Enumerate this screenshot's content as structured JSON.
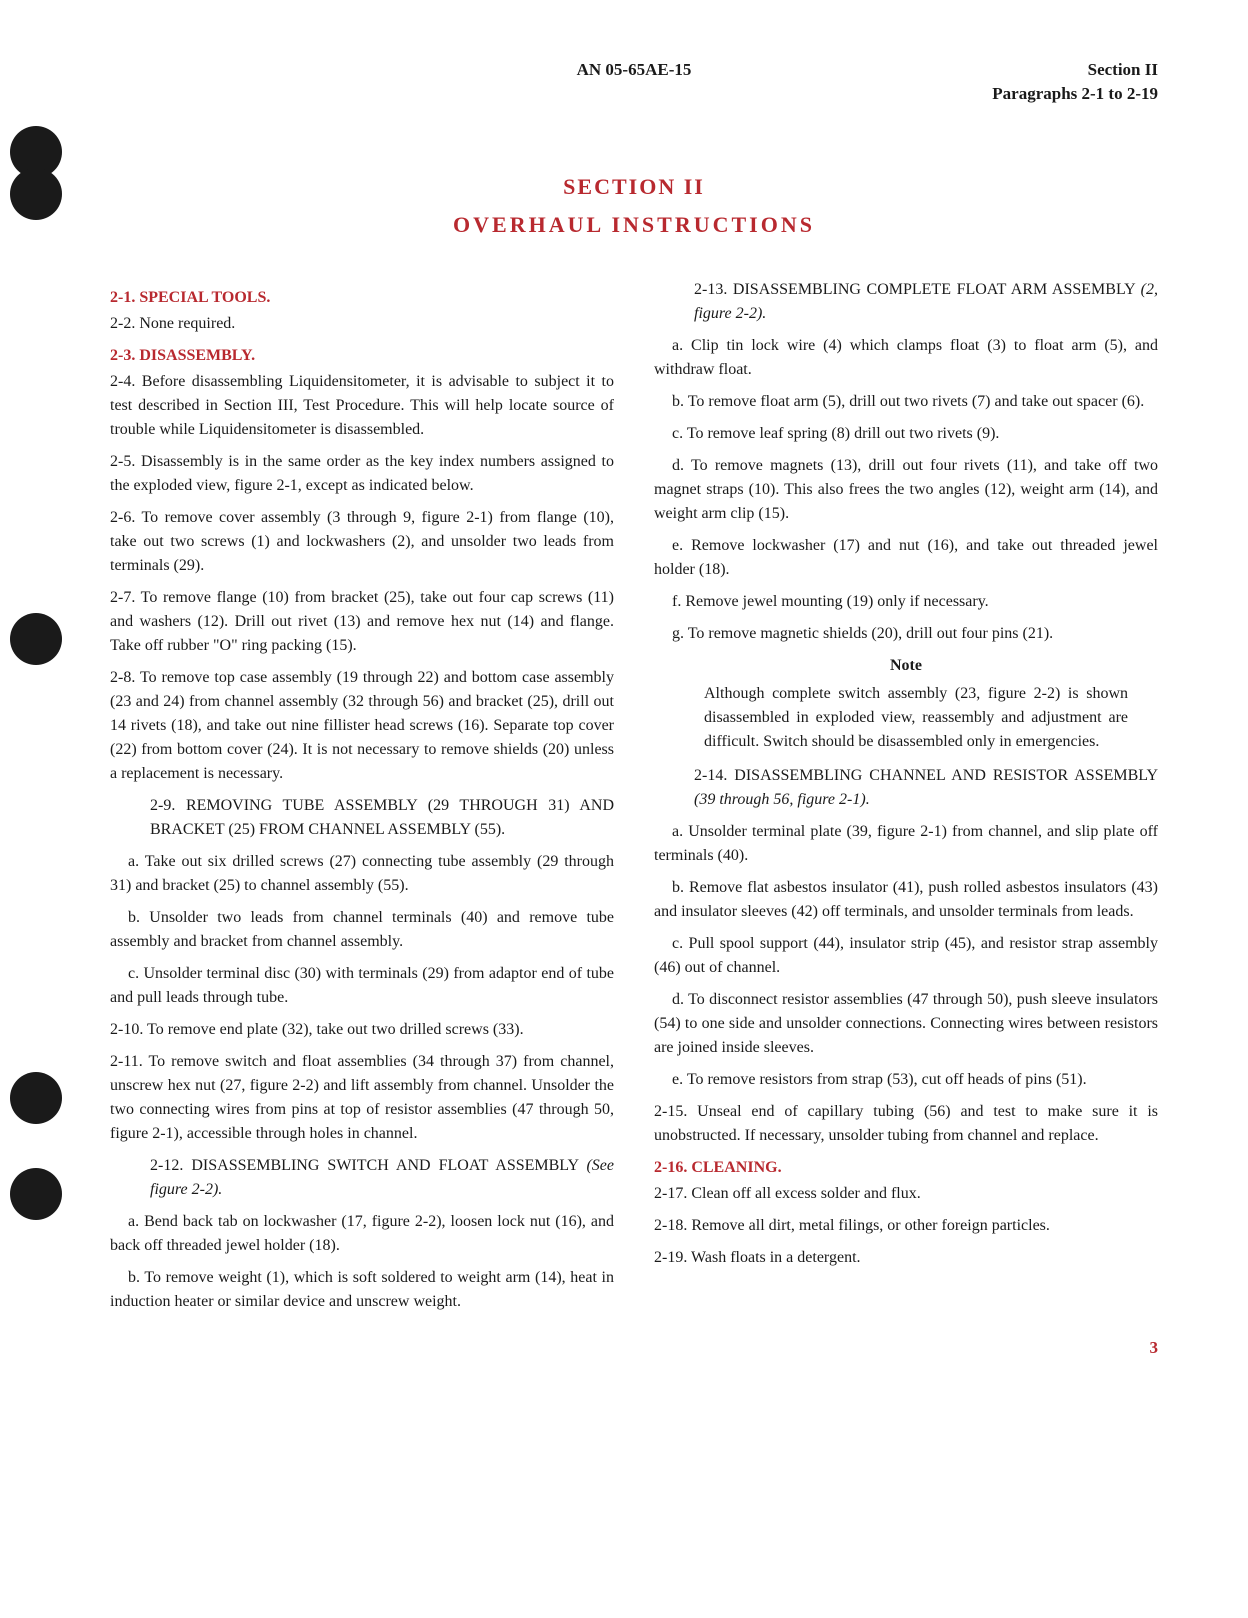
{
  "header": {
    "doc_id": "AN 05-65AE-15",
    "section": "Section II",
    "paragraphs": "Paragraphs 2-1 to 2-19"
  },
  "title": "SECTION II",
  "subtitle": "OVERHAUL INSTRUCTIONS",
  "holes": [
    126,
    168,
    613,
    1072,
    1168
  ],
  "paragraphs": [
    {
      "type": "heading",
      "text": "2-1. SPECIAL TOOLS."
    },
    {
      "type": "para",
      "text": "2-2. None required."
    },
    {
      "type": "heading",
      "text": "2-3. DISASSEMBLY."
    },
    {
      "type": "para",
      "text": "2-4. Before disassembling Liquidensitometer, it is advisable to subject it to test described in Section III, Test Procedure. This will help locate source of trouble while Liquidensitometer is disassembled."
    },
    {
      "type": "para",
      "text": "2-5. Disassembly is in the same order as the key index numbers assigned to the exploded view, figure 2-1, except as indicated below."
    },
    {
      "type": "para",
      "text": "2-6. To remove cover assembly (3 through 9, figure 2-1) from flange (10), take out two screws (1) and lockwashers (2), and unsolder two leads from terminals (29)."
    },
    {
      "type": "para",
      "text": "2-7. To remove flange (10) from bracket (25), take out four cap screws (11) and washers (12). Drill out rivet (13) and remove hex nut (14) and flange. Take off rubber \"O\" ring packing (15)."
    },
    {
      "type": "para",
      "text": "2-8. To remove top case assembly (19 through 22) and bottom case assembly (23 and 24) from channel assembly (32 through 56) and bracket (25), drill out 14 rivets (18), and take out nine fillister head screws (16). Separate top cover (22) from bottom cover (24). It is not necessary to remove shields (20) unless a replacement is necessary."
    },
    {
      "type": "sub",
      "text": "2-9. REMOVING TUBE ASSEMBLY (29 THROUGH 31) AND BRACKET (25) FROM CHANNEL ASSEMBLY (55)."
    },
    {
      "type": "para-indent",
      "text": "a. Take out six drilled screws (27) connecting tube assembly (29 through 31) and bracket (25) to channel assembly (55)."
    },
    {
      "type": "para-indent",
      "text": "b. Unsolder two leads from channel terminals (40) and remove tube assembly and bracket from channel assembly."
    },
    {
      "type": "para-indent",
      "text": "c. Unsolder terminal disc (30) with terminals (29) from adaptor end of tube and pull leads through tube."
    },
    {
      "type": "para",
      "text": "2-10. To remove end plate (32), take out two drilled screws (33)."
    },
    {
      "type": "para",
      "text": "2-11. To remove switch and float assemblies (34 through 37) from channel, unscrew hex nut (27, figure 2-2) and lift assembly from channel. Unsolder the two connecting wires from pins at top of resistor assemblies (47 through 50, figure 2-1), accessible through holes in channel."
    },
    {
      "type": "sub-italic",
      "prefix": "2-12. DISASSEMBLING SWITCH AND FLOAT ASSEMBLY ",
      "italic": "(See figure 2-2)."
    },
    {
      "type": "para-indent",
      "text": "a. Bend back tab on lockwasher (17, figure 2-2), loosen lock nut (16), and back off threaded jewel holder (18)."
    },
    {
      "type": "para-indent",
      "text": "b. To remove weight (1), which is soft soldered to weight arm (14), heat in induction heater or similar device and unscrew weight."
    },
    {
      "type": "sub-italic",
      "prefix": "2-13. DISASSEMBLING COMPLETE FLOAT ARM ASSEMBLY ",
      "italic": "(2, figure 2-2)."
    },
    {
      "type": "para-indent",
      "text": "a. Clip tin lock wire (4) which clamps float (3) to float arm (5), and withdraw float."
    },
    {
      "type": "para-indent",
      "text": "b. To remove float arm (5), drill out two rivets (7) and take out spacer (6)."
    },
    {
      "type": "para-indent",
      "text": "c. To remove leaf spring (8) drill out two rivets (9)."
    },
    {
      "type": "para-indent",
      "text": "d. To remove magnets (13), drill out four rivets (11), and take off two magnet straps (10). This also frees the two angles (12), weight arm (14), and weight arm clip (15)."
    },
    {
      "type": "para-indent",
      "text": "e. Remove lockwasher (17) and nut (16), and take out threaded jewel holder (18)."
    },
    {
      "type": "para-indent",
      "text": "f. Remove jewel mounting (19) only if necessary."
    },
    {
      "type": "para-indent",
      "text": "g. To remove magnetic shields (20), drill out four pins (21)."
    },
    {
      "type": "note-title",
      "text": "Note"
    },
    {
      "type": "note-body",
      "text": "Although complete switch assembly (23, figure 2-2) is shown disassembled in exploded view, reassembly and adjustment are difficult. Switch should be disassembled only in emergencies."
    },
    {
      "type": "sub-italic",
      "prefix": "2-14. DISASSEMBLING CHANNEL AND RESISTOR ASSEMBLY ",
      "italic": "(39 through 56, figure 2-1)."
    },
    {
      "type": "para-indent",
      "text": "a. Unsolder terminal plate (39, figure 2-1) from channel, and slip plate off terminals (40)."
    },
    {
      "type": "para-indent",
      "text": "b. Remove flat asbestos insulator (41), push rolled asbestos insulators (43) and insulator sleeves (42) off terminals, and unsolder terminals from leads."
    },
    {
      "type": "para-indent",
      "text": "c. Pull spool support (44), insulator strip (45), and resistor strap assembly (46) out of channel."
    },
    {
      "type": "para-indent",
      "text": "d. To disconnect resistor assemblies (47 through 50), push sleeve insulators (54) to one side and unsolder connections. Connecting wires between resistors are joined inside sleeves."
    },
    {
      "type": "para-indent",
      "text": "e. To remove resistors from strap (53), cut off heads of pins (51)."
    },
    {
      "type": "para",
      "text": "2-15. Unseal end of capillary tubing (56) and test to make sure it is unobstructed. If necessary, unsolder tubing from channel and replace."
    },
    {
      "type": "heading",
      "text": "2-16. CLEANING."
    },
    {
      "type": "para",
      "text": "2-17. Clean off all excess solder and flux."
    },
    {
      "type": "para",
      "text": "2-18. Remove all dirt, metal filings, or other foreign particles."
    },
    {
      "type": "para",
      "text": "2-19. Wash floats in a detergent."
    }
  ],
  "page_number": "3",
  "colors": {
    "accent": "#b8292f",
    "text": "#1a1a1a",
    "background": "#ffffff"
  }
}
